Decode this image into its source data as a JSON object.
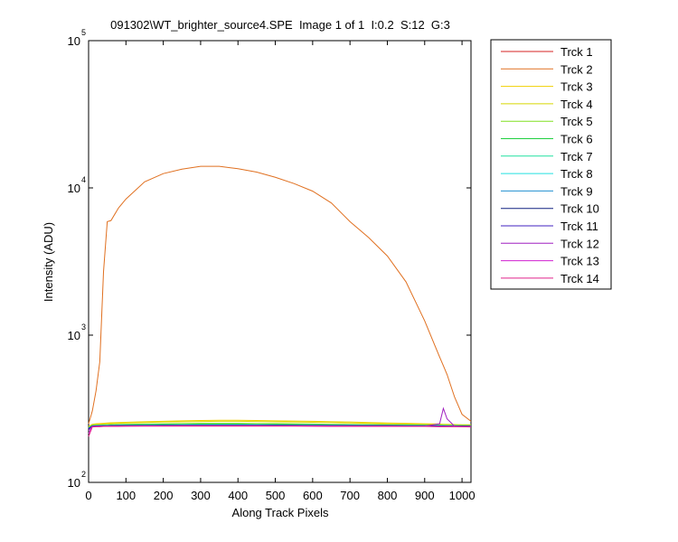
{
  "chart_data": {
    "type": "line",
    "title": "091302\\WT_brighter_source4.SPE  Image 1 of 1  I:0.2  S:12  G:3",
    "x_label": "Along Track Pixels",
    "y_label": "Intensity (ADU)",
    "log_y": true,
    "legend": "outside-right",
    "xlim": [
      0,
      1024
    ],
    "ylim": [
      100,
      100000
    ],
    "xticks": [
      0,
      100,
      200,
      300,
      400,
      500,
      600,
      700,
      800,
      900,
      1000
    ],
    "yticks": [
      {
        "value": 100,
        "label": "10",
        "superscript": "2"
      },
      {
        "value": 1000,
        "label": "10",
        "superscript": "3"
      },
      {
        "value": 10000,
        "label": "10",
        "superscript": "4"
      },
      {
        "value": 100000,
        "label": "10",
        "superscript": "5"
      }
    ],
    "x": [
      0,
      10,
      20,
      30,
      40,
      50,
      60,
      80,
      100,
      150,
      200,
      250,
      300,
      350,
      400,
      450,
      500,
      550,
      600,
      650,
      700,
      750,
      800,
      850,
      900,
      940,
      950,
      960,
      980,
      1000,
      1024
    ],
    "series": [
      {
        "name": "Trck 1",
        "color": "#d62020",
        "values": [
          232,
          245,
          244,
          246,
          245,
          244,
          245,
          246,
          245,
          244,
          245,
          246,
          245,
          244,
          245,
          246,
          245,
          244,
          245,
          246,
          245,
          244,
          245,
          246,
          245,
          244,
          245,
          246,
          245,
          244,
          245
        ]
      },
      {
        "name": "Trck 2",
        "color": "#e07020",
        "values": [
          250,
          305,
          420,
          660,
          2700,
          5900,
          6000,
          7300,
          8400,
          11000,
          12500,
          13400,
          14000,
          14000,
          13500,
          12800,
          11800,
          10700,
          9500,
          7900,
          5900,
          4600,
          3450,
          2300,
          1250,
          710,
          620,
          540,
          380,
          290,
          260
        ]
      },
      {
        "name": "Trck 3",
        "color": "#f0d000",
        "values": [
          240,
          248,
          250,
          251,
          252,
          253,
          254,
          255,
          256,
          258,
          260,
          262,
          263,
          264,
          264,
          263,
          262,
          261,
          260,
          258,
          257,
          255,
          253,
          252,
          250,
          249,
          248,
          248,
          247,
          246,
          246
        ]
      },
      {
        "name": "Trck 4",
        "color": "#d8d800",
        "values": [
          238,
          246,
          247,
          248,
          249,
          250,
          251,
          252,
          253,
          255,
          257,
          258,
          259,
          260,
          260,
          259,
          258,
          257,
          256,
          255,
          253,
          252,
          250,
          249,
          248,
          247,
          246,
          246,
          245,
          245,
          244
        ]
      },
      {
        "name": "Trck 5",
        "color": "#80e020",
        "values": [
          236,
          244,
          245,
          245,
          246,
          246,
          247,
          247,
          248,
          249,
          250,
          251,
          252,
          252,
          252,
          251,
          251,
          250,
          249,
          248,
          247,
          247,
          246,
          246,
          245,
          245,
          245,
          244,
          244,
          244,
          243
        ]
      },
      {
        "name": "Trck 6",
        "color": "#20d040",
        "values": [
          235,
          243,
          244,
          244,
          245,
          245,
          245,
          246,
          246,
          247,
          248,
          248,
          249,
          249,
          249,
          248,
          248,
          247,
          247,
          246,
          246,
          245,
          245,
          245,
          244,
          244,
          244,
          243,
          243,
          243,
          243
        ]
      },
      {
        "name": "Trck 7",
        "color": "#20e0a0",
        "values": [
          234,
          243,
          243,
          244,
          244,
          244,
          245,
          245,
          245,
          246,
          246,
          247,
          247,
          247,
          247,
          247,
          246,
          246,
          246,
          245,
          245,
          245,
          244,
          244,
          244,
          243,
          243,
          243,
          243,
          242,
          242
        ]
      },
      {
        "name": "Trck 8",
        "color": "#20e0e0",
        "values": [
          234,
          242,
          243,
          243,
          243,
          244,
          244,
          244,
          245,
          245,
          245,
          246,
          246,
          246,
          246,
          246,
          245,
          245,
          245,
          245,
          244,
          244,
          244,
          243,
          243,
          243,
          243,
          242,
          242,
          242,
          242
        ]
      },
      {
        "name": "Trck 9",
        "color": "#2090d0",
        "values": [
          233,
          242,
          242,
          243,
          243,
          243,
          243,
          244,
          244,
          244,
          244,
          245,
          245,
          245,
          245,
          245,
          245,
          244,
          244,
          244,
          244,
          243,
          243,
          243,
          243,
          242,
          242,
          242,
          242,
          242,
          241
        ]
      },
      {
        "name": "Trck 10",
        "color": "#102080",
        "values": [
          232,
          241,
          242,
          242,
          242,
          242,
          243,
          243,
          243,
          243,
          244,
          244,
          244,
          244,
          244,
          244,
          244,
          244,
          243,
          243,
          243,
          243,
          243,
          242,
          242,
          242,
          242,
          241,
          241,
          241,
          241
        ]
      },
      {
        "name": "Trck 11",
        "color": "#4020c0",
        "values": [
          228,
          240,
          241,
          241,
          241,
          242,
          242,
          242,
          242,
          243,
          243,
          243,
          243,
          243,
          243,
          243,
          243,
          243,
          243,
          242,
          242,
          242,
          242,
          242,
          241,
          241,
          241,
          241,
          240,
          240,
          240
        ]
      },
      {
        "name": "Trck 12",
        "color": "#a020c0",
        "values": [
          225,
          240,
          240,
          241,
          241,
          241,
          241,
          242,
          242,
          242,
          242,
          243,
          243,
          243,
          243,
          243,
          242,
          242,
          242,
          242,
          242,
          241,
          241,
          241,
          241,
          250,
          318,
          270,
          241,
          240,
          240
        ]
      },
      {
        "name": "Trck 13",
        "color": "#d020d0",
        "values": [
          215,
          239,
          240,
          240,
          240,
          241,
          241,
          241,
          241,
          242,
          242,
          242,
          242,
          242,
          242,
          242,
          242,
          242,
          241,
          241,
          241,
          241,
          241,
          240,
          240,
          240,
          240,
          240,
          240,
          239,
          239
        ]
      },
      {
        "name": "Trck 14",
        "color": "#e0208a",
        "values": [
          205,
          238,
          239,
          239,
          240,
          240,
          240,
          240,
          241,
          241,
          241,
          241,
          241,
          241,
          241,
          241,
          241,
          241,
          241,
          240,
          240,
          240,
          240,
          240,
          240,
          239,
          239,
          239,
          239,
          239,
          238
        ]
      }
    ]
  }
}
